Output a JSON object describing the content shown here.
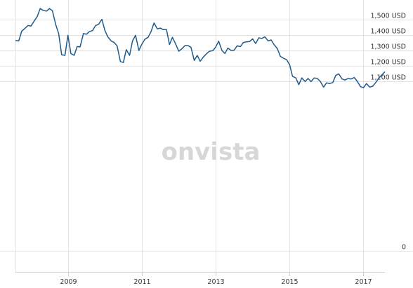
{
  "chart_data": {
    "type": "line",
    "title": "",
    "xlabel": "",
    "ylabel": "",
    "watermark": "onvista",
    "y_unit": "USD",
    "grid": true,
    "ylim": [
      0,
      1600
    ],
    "xlim": [
      2007.58,
      2017.58
    ],
    "y_ticks": [
      {
        "value": 0,
        "label": "0"
      },
      {
        "value": 1100,
        "label": "1,100 USD"
      },
      {
        "value": 1200,
        "label": "1,200 USD"
      },
      {
        "value": 1300,
        "label": "1,300 USD"
      },
      {
        "value": 1400,
        "label": "1,400 USD"
      },
      {
        "value": 1500,
        "label": "1,500 USD"
      }
    ],
    "x_ticks": [
      {
        "value": 2009,
        "label": "2009"
      },
      {
        "value": 2011,
        "label": "2011"
      },
      {
        "value": 2013,
        "label": "2013"
      },
      {
        "value": 2015,
        "label": "2015"
      },
      {
        "value": 2017,
        "label": "2017"
      }
    ],
    "line_color": "#1f5a8c",
    "series": [
      {
        "x": [
          2007.58,
          2007.67,
          2007.75,
          2007.83,
          2007.92,
          2008.0,
          2008.08,
          2008.17,
          2008.25,
          2008.33,
          2008.42,
          2008.5,
          2008.58,
          2008.67,
          2008.75,
          2008.83,
          2008.92,
          2009.0,
          2009.08,
          2009.17,
          2009.25,
          2009.33,
          2009.42,
          2009.5,
          2009.58,
          2009.67,
          2009.75,
          2009.83,
          2009.92,
          2010.0,
          2010.08,
          2010.17,
          2010.25,
          2010.33,
          2010.42,
          2010.5,
          2010.58,
          2010.67,
          2010.75,
          2010.83,
          2010.92,
          2011.0,
          2011.08,
          2011.17,
          2011.25,
          2011.33,
          2011.42,
          2011.5,
          2011.58,
          2011.67,
          2011.75,
          2011.83,
          2011.92,
          2012.0,
          2012.08,
          2012.17,
          2012.25,
          2012.33,
          2012.42,
          2012.5,
          2012.58,
          2012.67,
          2012.75,
          2012.83,
          2012.92,
          2013.0,
          2013.08,
          2013.17,
          2013.25,
          2013.33,
          2013.42,
          2013.5,
          2013.58,
          2013.67,
          2013.75,
          2013.83,
          2013.92,
          2014.0,
          2014.08,
          2014.17,
          2014.25,
          2014.33,
          2014.42,
          2014.5,
          2014.58,
          2014.67,
          2014.75,
          2014.83,
          2014.92,
          2015.0,
          2015.08,
          2015.17,
          2015.25,
          2015.33,
          2015.42,
          2015.5,
          2015.58,
          2015.67,
          2015.75,
          2015.83,
          2015.92,
          2016.0,
          2016.08,
          2016.17,
          2016.25,
          2016.33,
          2016.42,
          2016.5,
          2016.58,
          2016.67,
          2016.75,
          2016.83,
          2016.92,
          2017.0,
          2017.08,
          2017.17,
          2017.25,
          2017.33,
          2017.42,
          2017.5,
          2017.58
        ],
        "values": [
          1365,
          1362,
          1425,
          1442,
          1462,
          1458,
          1488,
          1520,
          1572,
          1560,
          1555,
          1572,
          1558,
          1468,
          1410,
          1272,
          1268,
          1398,
          1280,
          1268,
          1325,
          1323,
          1410,
          1405,
          1422,
          1430,
          1462,
          1470,
          1502,
          1430,
          1388,
          1362,
          1352,
          1330,
          1228,
          1222,
          1305,
          1268,
          1362,
          1398,
          1300,
          1340,
          1372,
          1385,
          1422,
          1478,
          1440,
          1445,
          1435,
          1435,
          1338,
          1385,
          1340,
          1295,
          1310,
          1332,
          1332,
          1320,
          1235,
          1268,
          1230,
          1258,
          1278,
          1295,
          1298,
          1322,
          1360,
          1300,
          1280,
          1315,
          1300,
          1302,
          1330,
          1325,
          1352,
          1356,
          1358,
          1375,
          1345,
          1382,
          1378,
          1388,
          1362,
          1368,
          1338,
          1312,
          1262,
          1250,
          1240,
          1208,
          1132,
          1122,
          1078,
          1122,
          1098,
          1118,
          1098,
          1122,
          1118,
          1100,
          1062,
          1090,
          1085,
          1092,
          1138,
          1148,
          1115,
          1108,
          1118,
          1115,
          1125,
          1100,
          1065,
          1058,
          1085,
          1062,
          1068,
          1092,
          1122,
          1142,
          1162
        ]
      }
    ]
  }
}
